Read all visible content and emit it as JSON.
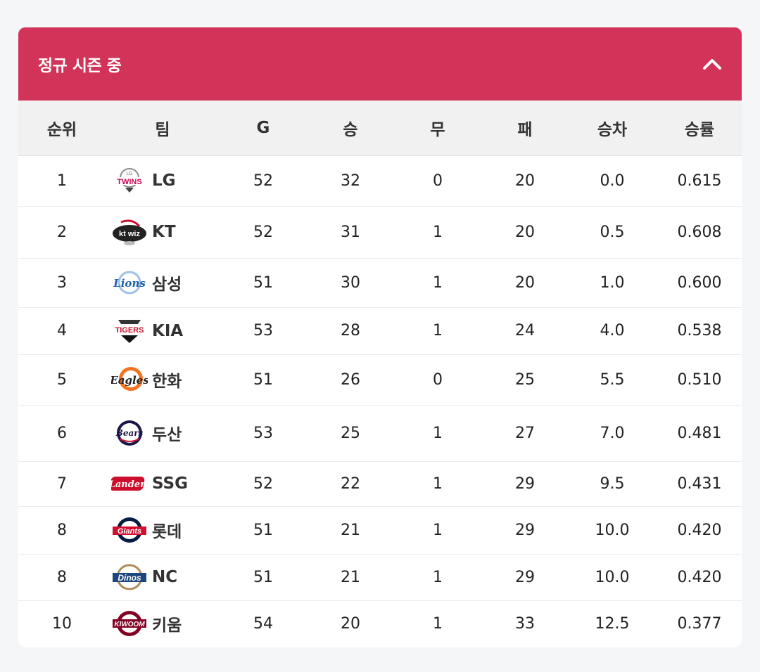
{
  "header": {
    "title": "정규 시즌 중",
    "toggle_icon": "chevron-up-icon"
  },
  "colors": {
    "accent": "#d13458",
    "header_bg": "#f1f1f1"
  },
  "columns": {
    "rank": "순위",
    "team": "팀",
    "g": "G",
    "w": "승",
    "d": "무",
    "l": "패",
    "gb": "승차",
    "pct": "승률"
  },
  "rows": [
    {
      "rank": "1",
      "team": "LG",
      "logo": "lg-twins-logo",
      "g": "52",
      "w": "32",
      "d": "0",
      "l": "20",
      "gb": "0.0",
      "pct": "0.615"
    },
    {
      "rank": "2",
      "team": "KT",
      "logo": "kt-wiz-logo",
      "g": "52",
      "w": "31",
      "d": "1",
      "l": "20",
      "gb": "0.5",
      "pct": "0.608"
    },
    {
      "rank": "3",
      "team": "삼성",
      "logo": "samsung-lions-logo",
      "g": "51",
      "w": "30",
      "d": "1",
      "l": "20",
      "gb": "1.0",
      "pct": "0.600"
    },
    {
      "rank": "4",
      "team": "KIA",
      "logo": "kia-tigers-logo",
      "g": "53",
      "w": "28",
      "d": "1",
      "l": "24",
      "gb": "4.0",
      "pct": "0.538"
    },
    {
      "rank": "5",
      "team": "한화",
      "logo": "hanwha-eagles-logo",
      "g": "51",
      "w": "26",
      "d": "0",
      "l": "25",
      "gb": "5.5",
      "pct": "0.510"
    },
    {
      "rank": "6",
      "team": "두산",
      "logo": "doosan-bears-logo",
      "g": "53",
      "w": "25",
      "d": "1",
      "l": "27",
      "gb": "7.0",
      "pct": "0.481"
    },
    {
      "rank": "7",
      "team": "SSG",
      "logo": "ssg-landers-logo",
      "g": "52",
      "w": "22",
      "d": "1",
      "l": "29",
      "gb": "9.5",
      "pct": "0.431"
    },
    {
      "rank": "8",
      "team": "롯데",
      "logo": "lotte-giants-logo",
      "g": "51",
      "w": "21",
      "d": "1",
      "l": "29",
      "gb": "10.0",
      "pct": "0.420"
    },
    {
      "rank": "8",
      "team": "NC",
      "logo": "nc-dinos-logo",
      "g": "51",
      "w": "21",
      "d": "1",
      "l": "29",
      "gb": "10.0",
      "pct": "0.420"
    },
    {
      "rank": "10",
      "team": "키움",
      "logo": "kiwoom-heroes-logo",
      "g": "54",
      "w": "20",
      "d": "1",
      "l": "33",
      "gb": "12.5",
      "pct": "0.377"
    }
  ]
}
